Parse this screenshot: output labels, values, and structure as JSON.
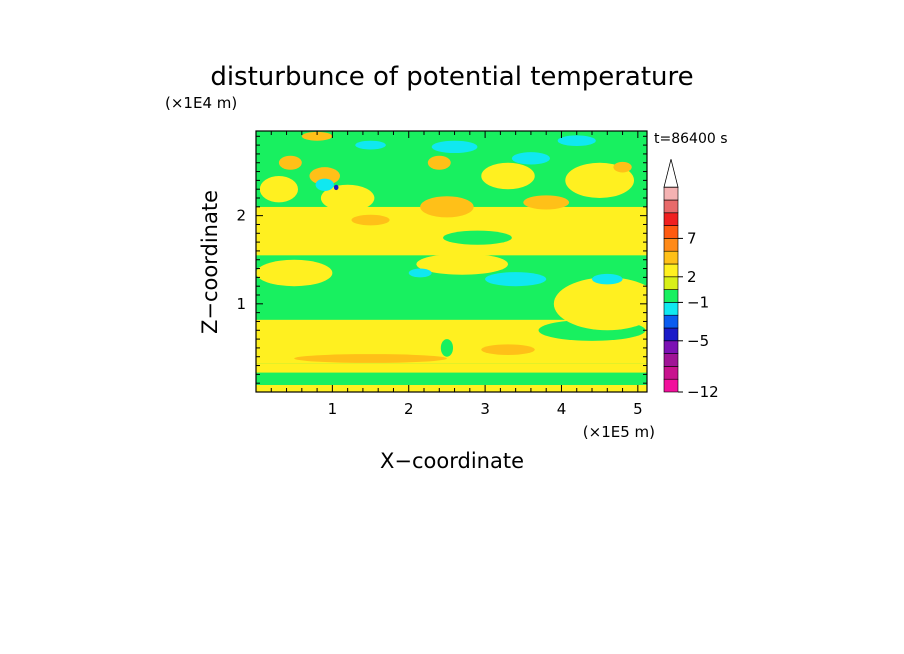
{
  "chart_data": {
    "type": "heatmap",
    "title": "disturbunce of potential temperature",
    "xlabel": "X−coordinate",
    "ylabel": "Z−coordinate",
    "x_unit": "(×1E5 m)",
    "y_unit": "(×1E4 m)",
    "time_label": "t=86400 s",
    "xlim": [
      0,
      5.12
    ],
    "ylim": [
      0,
      2.96
    ],
    "x_ticks": [
      {
        "value": 1,
        "label": "1"
      },
      {
        "value": 2,
        "label": "2"
      },
      {
        "value": 3,
        "label": "3"
      },
      {
        "value": 4,
        "label": "4"
      },
      {
        "value": 5,
        "label": "5"
      }
    ],
    "y_ticks": [
      {
        "value": 1,
        "label": "1"
      },
      {
        "value": 2,
        "label": "2"
      }
    ],
    "colorbar": {
      "colors": [
        "#f2109c",
        "#c8128e",
        "#a01496",
        "#7c12b4",
        "#1a1ac8",
        "#0a5cf0",
        "#10e8f0",
        "#18f060",
        "#d8f018",
        "#fff020",
        "#ffc018",
        "#ff8a18",
        "#ff5a10",
        "#f02020",
        "#e86a6a",
        "#f4b2b2"
      ],
      "labels": [
        {
          "index": 0,
          "text": "−12"
        },
        {
          "index": 4,
          "text": "−5"
        },
        {
          "index": 7,
          "text": "−1"
        },
        {
          "index": 9,
          "text": "2"
        },
        {
          "index": 12,
          "text": "7"
        }
      ],
      "extend_top": true
    },
    "field_colors": {
      "negative_strong": "#1a1ac8",
      "negative": "#10e8f0",
      "near_zero": "#18f060",
      "small_positive": "#fff020",
      "positive": "#ffc018",
      "positive_strong": "#ff8a18"
    },
    "regions": [
      {
        "kind": "band",
        "value": 0.3,
        "z0": 0.0,
        "z1": 0.08
      },
      {
        "kind": "band",
        "value": -0.3,
        "z0": 0.08,
        "z1": 0.22
      },
      {
        "kind": "band",
        "value": 0.3,
        "z0": 0.22,
        "z1": 0.32
      },
      {
        "kind": "band",
        "value": 0.3,
        "z0": 0.32,
        "z1": 0.82
      },
      {
        "kind": "band",
        "value": -0.3,
        "z0": 0.82,
        "z1": 1.55
      },
      {
        "kind": "band",
        "value": 0.3,
        "z0": 1.55,
        "z1": 2.1
      },
      {
        "kind": "band",
        "value": -0.3,
        "z0": 2.1,
        "z1": 2.96
      },
      {
        "kind": "blob",
        "value": 1.2,
        "x": 1.5,
        "z": 0.38,
        "rx": 1.0,
        "rz": 0.05
      },
      {
        "kind": "blob",
        "value": 1.2,
        "x": 3.3,
        "z": 0.48,
        "rx": 0.35,
        "rz": 0.06
      },
      {
        "kind": "blob",
        "value": -0.3,
        "x": 2.5,
        "z": 0.5,
        "rx": 0.08,
        "rz": 0.1
      },
      {
        "kind": "blob",
        "value": -0.3,
        "x": 4.4,
        "z": 0.7,
        "rx": 0.7,
        "rz": 0.12
      },
      {
        "kind": "blob",
        "value": 0.3,
        "x": 4.6,
        "z": 1.0,
        "rx": 0.7,
        "rz": 0.3
      },
      {
        "kind": "blob",
        "value": 0.3,
        "x": 2.7,
        "z": 1.45,
        "rx": 0.6,
        "rz": 0.12
      },
      {
        "kind": "blob",
        "value": -1.5,
        "x": 3.4,
        "z": 1.28,
        "rx": 0.4,
        "rz": 0.08
      },
      {
        "kind": "blob",
        "value": -1.5,
        "x": 4.6,
        "z": 1.28,
        "rx": 0.2,
        "rz": 0.06
      },
      {
        "kind": "blob",
        "value": -1.5,
        "x": 2.15,
        "z": 1.35,
        "rx": 0.15,
        "rz": 0.05
      },
      {
        "kind": "blob",
        "value": 0.3,
        "x": 0.5,
        "z": 1.35,
        "rx": 0.5,
        "rz": 0.15
      },
      {
        "kind": "blob",
        "value": 1.2,
        "x": 2.5,
        "z": 2.1,
        "rx": 0.35,
        "rz": 0.12
      },
      {
        "kind": "blob",
        "value": 1.2,
        "x": 3.8,
        "z": 2.15,
        "rx": 0.3,
        "rz": 0.08
      },
      {
        "kind": "blob",
        "value": 1.2,
        "x": 1.5,
        "z": 1.95,
        "rx": 0.25,
        "rz": 0.06
      },
      {
        "kind": "blob",
        "value": 1.2,
        "x": 0.45,
        "z": 2.6,
        "rx": 0.15,
        "rz": 0.08
      },
      {
        "kind": "blob",
        "value": 1.2,
        "x": 0.9,
        "z": 2.45,
        "rx": 0.2,
        "rz": 0.1
      },
      {
        "kind": "blob",
        "value": 1.2,
        "x": 2.4,
        "z": 2.6,
        "rx": 0.15,
        "rz": 0.08
      },
      {
        "kind": "blob",
        "value": 0.3,
        "x": 1.2,
        "z": 2.2,
        "rx": 0.35,
        "rz": 0.15
      },
      {
        "kind": "blob",
        "value": 0.3,
        "x": 0.3,
        "z": 2.3,
        "rx": 0.25,
        "rz": 0.15
      },
      {
        "kind": "blob",
        "value": -1.5,
        "x": 0.9,
        "z": 2.35,
        "rx": 0.12,
        "rz": 0.07
      },
      {
        "kind": "blob",
        "value": -1.5,
        "x": 2.6,
        "z": 2.78,
        "rx": 0.3,
        "rz": 0.07
      },
      {
        "kind": "blob",
        "value": -1.5,
        "x": 3.6,
        "z": 2.65,
        "rx": 0.25,
        "rz": 0.07
      },
      {
        "kind": "blob",
        "value": -1.5,
        "x": 4.2,
        "z": 2.85,
        "rx": 0.25,
        "rz": 0.06
      },
      {
        "kind": "blob",
        "value": -1.5,
        "x": 1.5,
        "z": 2.8,
        "rx": 0.2,
        "rz": 0.05
      },
      {
        "kind": "blob",
        "value": -3.5,
        "x": 1.05,
        "z": 2.32,
        "rx": 0.03,
        "rz": 0.03
      },
      {
        "kind": "blob",
        "value": 0.3,
        "x": 4.5,
        "z": 2.4,
        "rx": 0.45,
        "rz": 0.2
      },
      {
        "kind": "blob",
        "value": 0.3,
        "x": 3.3,
        "z": 2.45,
        "rx": 0.35,
        "rz": 0.15
      },
      {
        "kind": "blob",
        "value": 1.2,
        "x": 4.8,
        "z": 2.55,
        "rx": 0.12,
        "rz": 0.06
      },
      {
        "kind": "blob",
        "value": 1.2,
        "x": 0.8,
        "z": 2.9,
        "rx": 0.2,
        "rz": 0.05
      },
      {
        "kind": "blob",
        "value": -0.3,
        "x": 2.9,
        "z": 1.75,
        "rx": 0.45,
        "rz": 0.08
      }
    ]
  }
}
